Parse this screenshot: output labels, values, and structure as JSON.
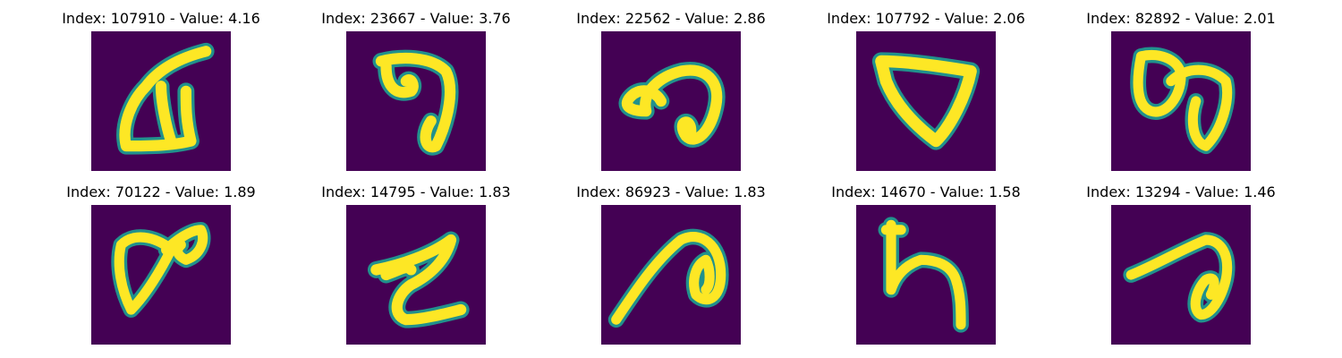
{
  "panels": [
    {
      "title": "Index: 107910 - Value: 4.16",
      "index": 107910,
      "value": 4.16,
      "glyph": "digit-glyph-a"
    },
    {
      "title": "Index: 23667 - Value: 3.76",
      "index": 23667,
      "value": 3.76,
      "glyph": "digit-glyph-b"
    },
    {
      "title": "Index: 22562 - Value: 2.86",
      "index": 22562,
      "value": 2.86,
      "glyph": "digit-glyph-c"
    },
    {
      "title": "Index: 107792 - Value: 2.06",
      "index": 107792,
      "value": 2.06,
      "glyph": "digit-glyph-d"
    },
    {
      "title": "Index: 82892 - Value: 2.01",
      "index": 82892,
      "value": 2.01,
      "glyph": "digit-glyph-e"
    },
    {
      "title": "Index: 70122 - Value: 1.89",
      "index": 70122,
      "value": 1.89,
      "glyph": "digit-glyph-f"
    },
    {
      "title": "Index: 14795 - Value: 1.83",
      "index": 14795,
      "value": 1.83,
      "glyph": "digit-glyph-g"
    },
    {
      "title": "Index: 86923 - Value: 1.83",
      "index": 86923,
      "value": 1.83,
      "glyph": "digit-glyph-h"
    },
    {
      "title": "Index: 14670 - Value: 1.58",
      "index": 14670,
      "value": 1.58,
      "glyph": "digit-glyph-i"
    },
    {
      "title": "Index: 13294 - Value: 1.46",
      "index": 13294,
      "value": 1.46,
      "glyph": "digit-glyph-j"
    }
  ],
  "colors": {
    "background": "#440154",
    "stroke_core": "#fde725",
    "stroke_edge": "#21918c"
  }
}
